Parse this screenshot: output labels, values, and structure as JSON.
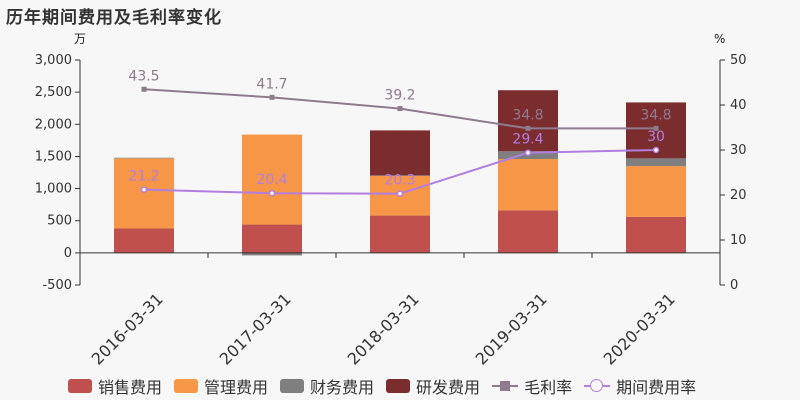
{
  "title": "历年期间费用及毛利率变化",
  "left_unit": "万",
  "right_unit": "%",
  "chart_data": {
    "type": "bar",
    "stacked": true,
    "categories": [
      "2016-03-31",
      "2017-03-31",
      "2018-03-31",
      "2019-03-31",
      "2020-03-31"
    ],
    "y_left": {
      "lim": [
        -500,
        3000
      ],
      "ticks": [
        "3,000",
        "2,500",
        "2,000",
        "1,500",
        "1,000",
        "500",
        "0",
        "-500"
      ]
    },
    "y_right": {
      "lim": [
        0,
        50
      ],
      "ticks": [
        "50",
        "40",
        "30",
        "20",
        "10",
        "0"
      ]
    },
    "series": [
      {
        "name": "销售费用",
        "color": "#c0504d",
        "values": [
          380,
          440,
          580,
          660,
          560
        ]
      },
      {
        "name": "管理费用",
        "color": "#f79646",
        "values": [
          1090,
          1400,
          620,
          800,
          790
        ]
      },
      {
        "name": "财务费用",
        "color": "#7f7f7f",
        "values": [
          10,
          -40,
          5,
          120,
          120
        ]
      },
      {
        "name": "研发费用",
        "color": "#7b2c2c",
        "values": [
          0,
          0,
          700,
          950,
          870
        ]
      }
    ],
    "lines": [
      {
        "name": "毛利率",
        "color": "#8e7b8e",
        "marker": "square",
        "values": [
          43.5,
          41.7,
          39.2,
          34.8,
          34.8
        ],
        "labels": [
          "43.5",
          "41.7",
          "39.2",
          "34.8",
          "34.8"
        ]
      },
      {
        "name": "期间费用率",
        "color": "#b07fe0",
        "marker": "circle",
        "values": [
          21.2,
          20.4,
          20.3,
          29.4,
          30
        ],
        "labels": [
          "21.2",
          "20.4",
          "20.3",
          "29.4",
          "30"
        ]
      }
    ],
    "legend_position": "bottom"
  }
}
